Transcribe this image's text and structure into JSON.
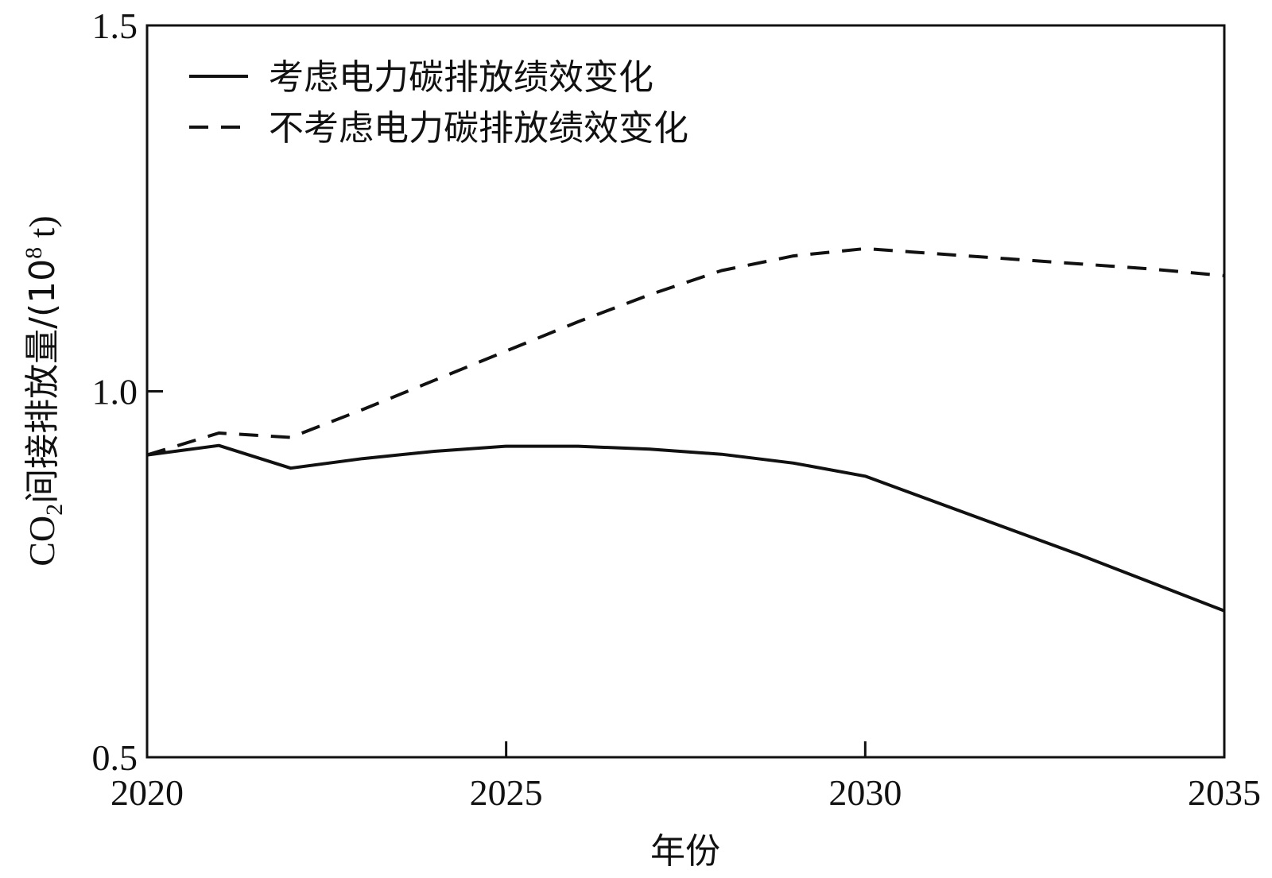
{
  "chart_data": {
    "type": "line",
    "xlabel": "年份",
    "ylabel_main": "CO",
    "ylabel_sub": "2",
    "ylabel_rest": "间接排放量/(10",
    "ylabel_sup": "8",
    "ylabel_end": " t)",
    "xlim": [
      2020,
      2035
    ],
    "ylim": [
      0.5,
      1.5
    ],
    "x_ticks": [
      "2020",
      "2025",
      "2030",
      "2035"
    ],
    "y_ticks": [
      "0.5",
      "1.0",
      "1.5"
    ],
    "legend_position": "top-left",
    "grid": false,
    "series": [
      {
        "name": "考虑电力碳排放绩效变化",
        "style": "solid",
        "x": [
          2020,
          2021,
          2022,
          2023,
          2024,
          2025,
          2026,
          2027,
          2028,
          2029,
          2030,
          2031,
          2032,
          2033,
          2034,
          2035
        ],
        "y": [
          0.913,
          0.926,
          0.895,
          0.908,
          0.918,
          0.925,
          0.925,
          0.921,
          0.914,
          0.902,
          0.884,
          0.848,
          0.812,
          0.776,
          0.738,
          0.7
        ]
      },
      {
        "name": "不考虑电力碳排放绩效变化",
        "style": "dashed",
        "x": [
          2020,
          2021,
          2022,
          2023,
          2024,
          2025,
          2026,
          2027,
          2028,
          2029,
          2030,
          2031,
          2032,
          2033,
          2034,
          2035
        ],
        "y": [
          0.913,
          0.943,
          0.937,
          0.975,
          1.015,
          1.055,
          1.095,
          1.132,
          1.165,
          1.185,
          1.195,
          1.188,
          1.181,
          1.174,
          1.167,
          1.158
        ]
      }
    ]
  }
}
